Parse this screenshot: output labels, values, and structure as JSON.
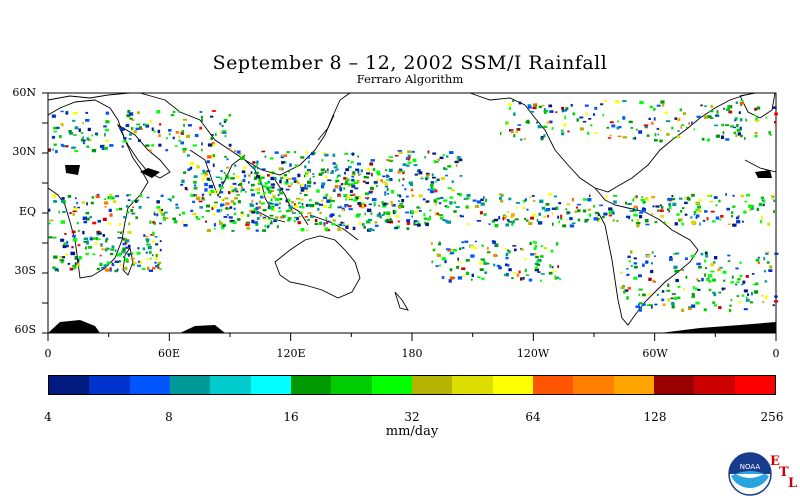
{
  "title": "September 8 – 12, 2002 SSM/I Rainfall",
  "subtitle": "Ferraro Algorithm",
  "map": {
    "lat_labels": [
      "60N",
      "30N",
      "EQ",
      "30S",
      "60S"
    ],
    "lon_labels": [
      "0",
      "60E",
      "120E",
      "180",
      "120W",
      "60W",
      "0"
    ],
    "background": "#ffffff",
    "coastline_color": "#000000"
  },
  "colorbar": {
    "colors": [
      "#001a80",
      "#0033cc",
      "#0055ff",
      "#009999",
      "#00cccc",
      "#00ffff",
      "#009900",
      "#00cc00",
      "#00ff00",
      "#b3b300",
      "#dddd00",
      "#ffff00",
      "#ff5500",
      "#ff8000",
      "#ffa500",
      "#990000",
      "#cc0000",
      "#ff0000"
    ],
    "tick_labels": [
      "4",
      "8",
      "16",
      "32",
      "64",
      "128",
      "256"
    ],
    "units": "mm/day"
  },
  "logo": {
    "text": "NOAA",
    "etl_letters": [
      "E",
      "T",
      "L"
    ]
  }
}
